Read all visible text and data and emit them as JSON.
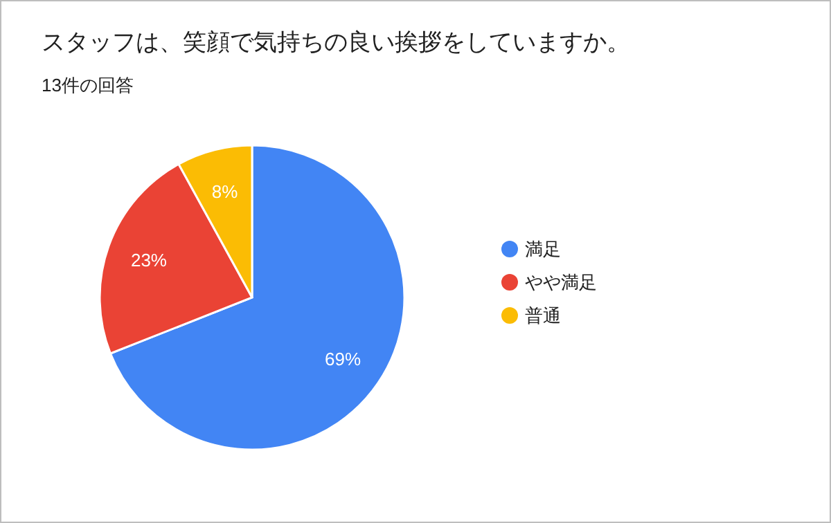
{
  "chart_data": {
    "type": "pie",
    "title": "スタッフは、笑顔で気持ちの良い挨拶をしていますか。",
    "subtitle": "13件の回答",
    "categories": [
      "満足",
      "やや満足",
      "普通"
    ],
    "values": [
      69,
      23,
      8
    ],
    "colors": [
      "#4285f4",
      "#ea4335",
      "#fbbc04"
    ],
    "value_labels": [
      "69%",
      "23%",
      "8%"
    ],
    "legend": "right"
  }
}
